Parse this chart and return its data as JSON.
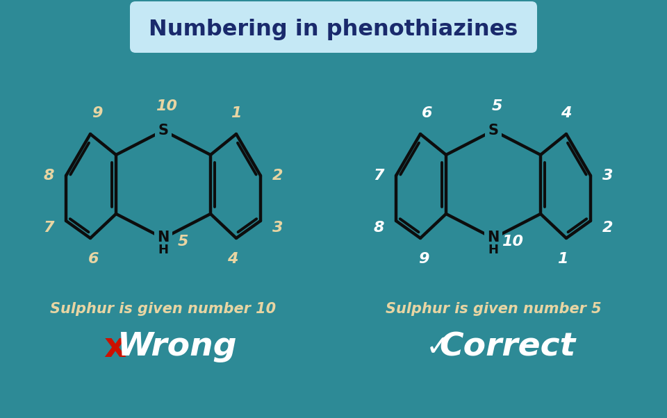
{
  "title": "Numbering in phenothiazines",
  "bg_color": "#2d8a96",
  "title_bg": "#c5e8f5",
  "title_color": "#1a2a6c",
  "struct_color": "#0d0d0d",
  "num_color_left": "#e8d5a3",
  "num_color_right": "#ffffff",
  "atom_color": "#0d0d0d",
  "wrong_label": "Sulphur is given number 10",
  "correct_label": "Sulphur is given number 5",
  "wrong_text": "Wrong",
  "correct_text": "Correct",
  "label_color_left": "#e8d5a3",
  "label_color_right": "#e8d5a3",
  "x_color": "#cc1100",
  "check_color": "#ffffff",
  "wrong_text_color": "#ffffff",
  "correct_text_color": "#ffffff"
}
